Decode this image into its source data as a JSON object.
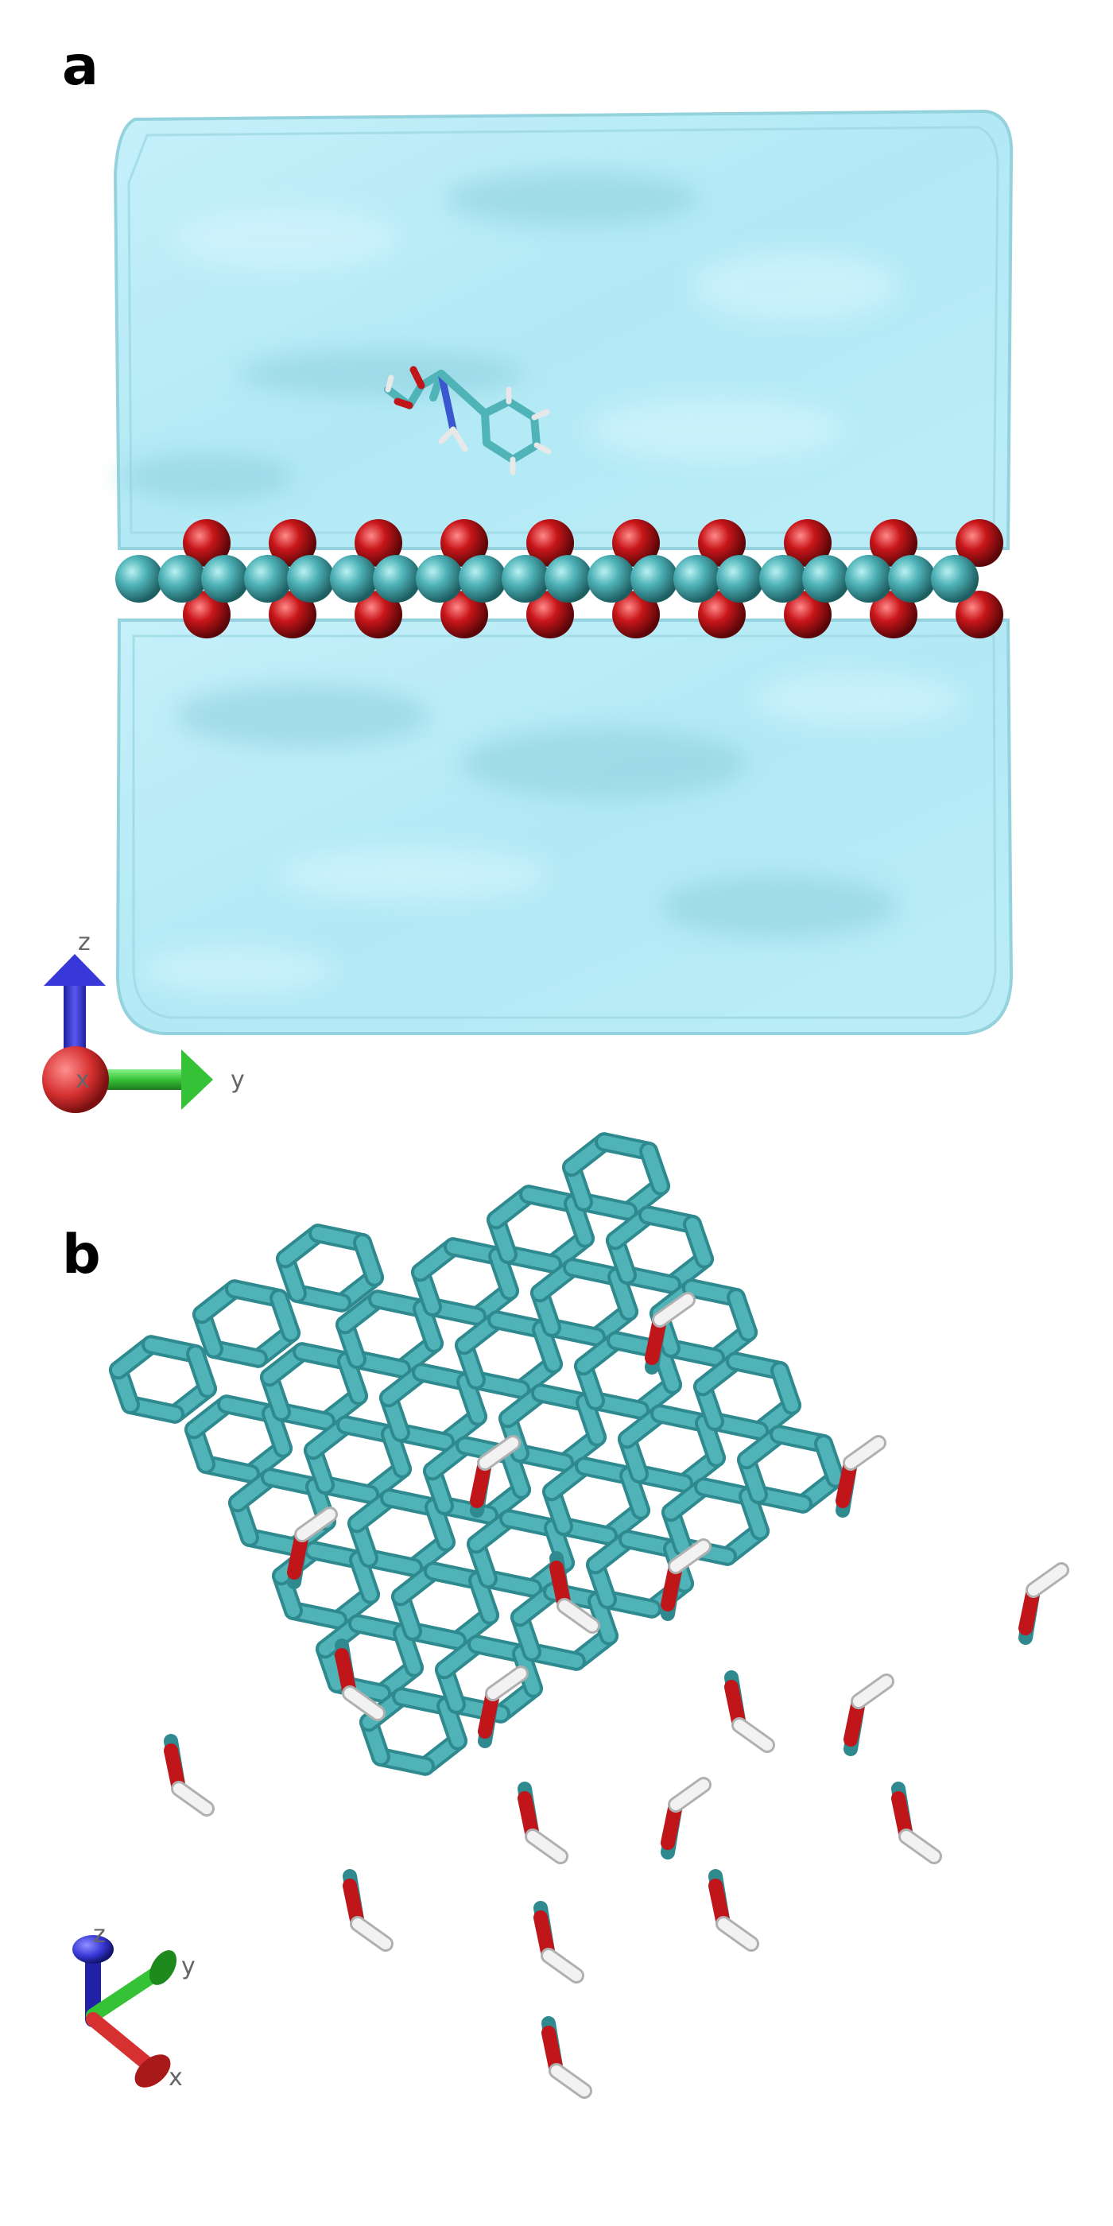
{
  "panels": [
    {
      "label": "a",
      "axes": {
        "z": "z",
        "x": "x",
        "y": "y"
      }
    },
    {
      "label": "b",
      "axes": {
        "z": "z",
        "x": "x",
        "y": "y"
      }
    }
  ],
  "colors": {
    "carbon": "#4fb3b8",
    "oxygen": "#c0161a",
    "hydrogen": "#f2f2f2",
    "nitrogen": "#3a57d0",
    "water_box": "#a6e3f0",
    "axis_x": "#d63030",
    "axis_y": "#36c236",
    "axis_z": "#3838d8"
  }
}
